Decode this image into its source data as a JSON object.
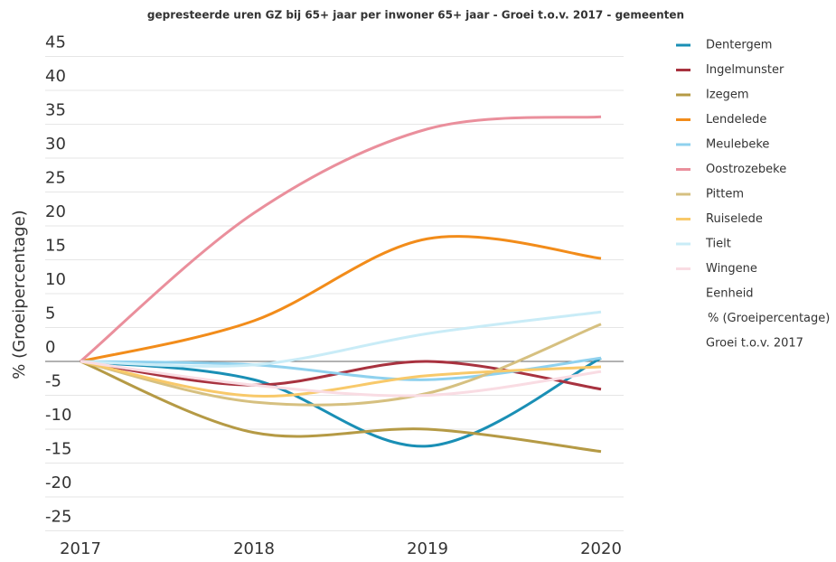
{
  "chart_data": {
    "type": "line",
    "title": "gepresteerde uren GZ bij 65+ jaar per inwoner 65+ jaar - Groei t.o.v. 2017 - gemeenten",
    "y_label": "% (Groeipercentage)",
    "categories": [
      "2017",
      "2018",
      "2019",
      "2020"
    ],
    "ylim": [
      -25,
      45
    ],
    "yticks": [
      -25,
      -20,
      -15,
      -10,
      -5,
      0,
      5,
      10,
      15,
      20,
      25,
      30,
      35,
      40,
      45
    ],
    "grid": true,
    "legend": "right",
    "legend_extra": [
      "Eenheid",
      "% (Groeipercentage)",
      "Groei t.o.v. 2017"
    ],
    "series": [
      {
        "name": "Dentergem",
        "color": "#1a8fb5",
        "values": [
          0,
          -2.7,
          -12.5,
          0.5
        ]
      },
      {
        "name": "Ingelmunster",
        "color": "#a8323f",
        "values": [
          0,
          -3.5,
          0,
          -4.1
        ]
      },
      {
        "name": "Izegem",
        "color": "#b59a45",
        "values": [
          0,
          -10.5,
          -10,
          -13.3
        ]
      },
      {
        "name": "Lendelede",
        "color": "#f28c1a",
        "values": [
          0,
          6,
          18.1,
          15.2
        ]
      },
      {
        "name": "Meulebeke",
        "color": "#8fd1ee",
        "values": [
          0,
          -0.5,
          -2.7,
          0.5
        ]
      },
      {
        "name": "Oostrozebeke",
        "color": "#ea8f9c",
        "values": [
          0,
          21.9,
          34.3,
          36.1
        ]
      },
      {
        "name": "Pittem",
        "color": "#d6c080",
        "values": [
          0,
          -6,
          -4.7,
          5.5
        ]
      },
      {
        "name": "Ruiselede",
        "color": "#f8c96a",
        "values": [
          0,
          -5.1,
          -2.1,
          -0.8
        ]
      },
      {
        "name": "Tielt",
        "color": "#c9ecf7",
        "values": [
          0,
          -0.5,
          4.1,
          7.3
        ]
      },
      {
        "name": "Wingene",
        "color": "#f9dce3",
        "values": [
          0,
          -3.5,
          -5,
          -1.5
        ]
      }
    ]
  }
}
